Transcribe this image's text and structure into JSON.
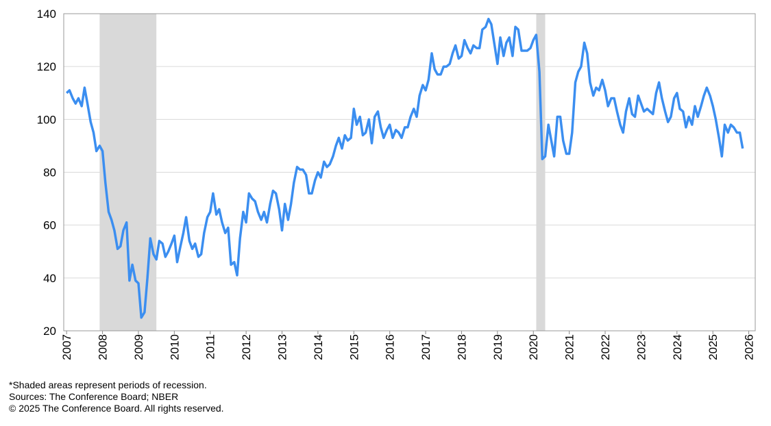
{
  "chart_data": {
    "type": "line",
    "x": [
      2007,
      2007.08,
      2007.17,
      2007.25,
      2007.33,
      2007.42,
      2007.5,
      2007.58,
      2007.67,
      2007.75,
      2007.83,
      2007.92,
      2008,
      2008.08,
      2008.17,
      2008.25,
      2008.33,
      2008.42,
      2008.5,
      2008.58,
      2008.67,
      2008.75,
      2008.83,
      2008.92,
      2009,
      2009.08,
      2009.17,
      2009.25,
      2009.33,
      2009.42,
      2009.5,
      2009.58,
      2009.67,
      2009.75,
      2009.83,
      2009.92,
      2010,
      2010.08,
      2010.17,
      2010.25,
      2010.33,
      2010.42,
      2010.5,
      2010.58,
      2010.67,
      2010.75,
      2010.83,
      2010.92,
      2011,
      2011.08,
      2011.17,
      2011.25,
      2011.33,
      2011.42,
      2011.5,
      2011.58,
      2011.67,
      2011.75,
      2011.83,
      2011.92,
      2012,
      2012.08,
      2012.17,
      2012.25,
      2012.33,
      2012.42,
      2012.5,
      2012.58,
      2012.67,
      2012.75,
      2012.83,
      2012.92,
      2013,
      2013.08,
      2013.17,
      2013.25,
      2013.33,
      2013.42,
      2013.5,
      2013.58,
      2013.67,
      2013.75,
      2013.83,
      2013.92,
      2014,
      2014.08,
      2014.17,
      2014.25,
      2014.33,
      2014.42,
      2014.5,
      2014.58,
      2014.67,
      2014.75,
      2014.83,
      2014.92,
      2015,
      2015.08,
      2015.17,
      2015.25,
      2015.33,
      2015.42,
      2015.5,
      2015.58,
      2015.67,
      2015.75,
      2015.83,
      2015.92,
      2016,
      2016.08,
      2016.17,
      2016.25,
      2016.33,
      2016.42,
      2016.5,
      2016.58,
      2016.67,
      2016.75,
      2016.83,
      2016.92,
      2017,
      2017.08,
      2017.17,
      2017.25,
      2017.33,
      2017.42,
      2017.5,
      2017.58,
      2017.67,
      2017.75,
      2017.83,
      2017.92,
      2018,
      2018.08,
      2018.17,
      2018.25,
      2018.33,
      2018.42,
      2018.5,
      2018.58,
      2018.67,
      2018.75,
      2018.83,
      2018.92,
      2019,
      2019.08,
      2019.17,
      2019.25,
      2019.33,
      2019.42,
      2019.5,
      2019.58,
      2019.67,
      2019.75,
      2019.83,
      2019.92,
      2020,
      2020.08,
      2020.17,
      2020.25,
      2020.33,
      2020.42,
      2020.5,
      2020.58,
      2020.67,
      2020.75,
      2020.83,
      2020.92,
      2021,
      2021.08,
      2021.17,
      2021.25,
      2021.33,
      2021.42,
      2021.5,
      2021.58,
      2021.67,
      2021.75,
      2021.83,
      2021.92,
      2022,
      2022.08,
      2022.17,
      2022.25,
      2022.33,
      2022.42,
      2022.5,
      2022.58,
      2022.67,
      2022.75,
      2022.83,
      2022.92,
      2023,
      2023.08,
      2023.17,
      2023.25,
      2023.33,
      2023.42,
      2023.5,
      2023.58,
      2023.67,
      2023.75,
      2023.83,
      2023.92,
      2024,
      2024.08,
      2024.17,
      2024.25,
      2024.33,
      2024.42,
      2024.5,
      2024.58,
      2024.67,
      2024.75,
      2024.83,
      2024.92,
      2025,
      2025.08,
      2025.17,
      2025.25,
      2025.33,
      2025.42,
      2025.5,
      2025.58,
      2025.67,
      2025.75,
      2025.83
    ],
    "series": [
      {
        "color": "#3b8ef0",
        "values": [
          110,
          111,
          108,
          106,
          108,
          105,
          112,
          106,
          99,
          95,
          88,
          90,
          88,
          76,
          65,
          62,
          58,
          51,
          52,
          58,
          61,
          39,
          45,
          39,
          38,
          25,
          27,
          40,
          55,
          49,
          47,
          54,
          53,
          48,
          50,
          53,
          56,
          46,
          52,
          57,
          63,
          54,
          51,
          53,
          48,
          49,
          57,
          63,
          65,
          72,
          64,
          66,
          61,
          57,
          59,
          45,
          46,
          41,
          55,
          65,
          61,
          72,
          70,
          69,
          65,
          62,
          65,
          61,
          68,
          73,
          72,
          66,
          58,
          68,
          62,
          68,
          76,
          82,
          81,
          81,
          79,
          72,
          72,
          77,
          80,
          78,
          84,
          82,
          83,
          86,
          90,
          93,
          89,
          94,
          92,
          93,
          104,
          98,
          101,
          94,
          95,
          100,
          91,
          101,
          103,
          97,
          93,
          96,
          98,
          93,
          96,
          95,
          93,
          97,
          97,
          101,
          104,
          101,
          109,
          113,
          111,
          115,
          125,
          119,
          117,
          117,
          120,
          120,
          121,
          125,
          128,
          123,
          124,
          130,
          127,
          125,
          128,
          127,
          127,
          134,
          135,
          138,
          136,
          128,
          121,
          131,
          124,
          129,
          131,
          124,
          135,
          134,
          126,
          126,
          126,
          127,
          130,
          132,
          118,
          85,
          86,
          98,
          92,
          86,
          101,
          101,
          92,
          87,
          87,
          95,
          114,
          118,
          120,
          129,
          125,
          114,
          109,
          112,
          111,
          115,
          111,
          105,
          108,
          108,
          103,
          98,
          95,
          103,
          108,
          102,
          101,
          109,
          106,
          103,
          104,
          103,
          102,
          110,
          114,
          108,
          103,
          99,
          101,
          108,
          110,
          104,
          103,
          97,
          101,
          98,
          105,
          101,
          105,
          109,
          112,
          109,
          105,
          100,
          93,
          86,
          98,
          95,
          98,
          97,
          95,
          95,
          89
        ]
      }
    ],
    "recessions": [
      [
        2007.92,
        2009.5
      ],
      [
        2020.08,
        2020.33
      ]
    ],
    "xlim": [
      2006.92,
      2026.18
    ],
    "xticks": [
      2007,
      2008,
      2009,
      2010,
      2011,
      2012,
      2013,
      2014,
      2015,
      2016,
      2017,
      2018,
      2019,
      2020,
      2021,
      2022,
      2023,
      2024,
      2025,
      2026
    ],
    "ylim": [
      20,
      140
    ],
    "yticks": [
      20,
      40,
      60,
      80,
      100,
      120,
      140
    ],
    "grid": true,
    "notes": [
      "*Shaded areas represent periods of recession.",
      "Sources:  The Conference Board;  NBER",
      "© 2025 The Conference Board. All rights reserved."
    ]
  }
}
